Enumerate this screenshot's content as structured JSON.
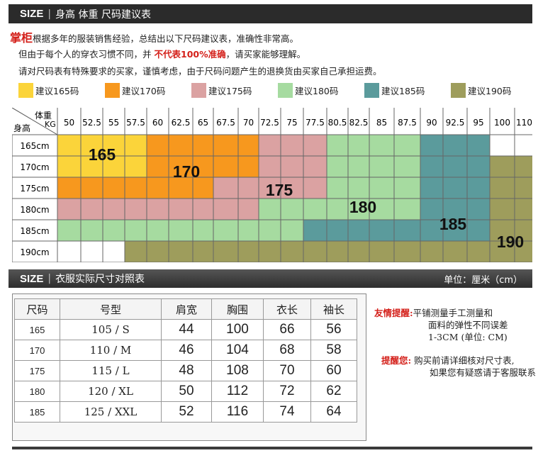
{
  "header1": {
    "size_word": "SIZE",
    "title": "身高 体重 尺码建议表"
  },
  "intro": {
    "brand": "掌柜",
    "line1": "根据多年的服装销售经验，总结出以下尺码建议表，准确性非常高。",
    "line2_pre": "但由于每个人的穿衣习惯不同，并",
    "line2_red": "不代表100%准确",
    "line2_post": "，请买家能够理解。",
    "line3": "请对尺码表有特殊要求的买家，谨慎考虑，由于尺码问题产生的退换货由买家自己承担运费。"
  },
  "legend": [
    {
      "label": "建议165码",
      "color": "#fbd43a"
    },
    {
      "label": "建议170码",
      "color": "#f7981e"
    },
    {
      "label": "建议175码",
      "color": "#dba2a2"
    },
    {
      "label": "建议180码",
      "color": "#a6dba0"
    },
    {
      "label": "建议185码",
      "color": "#5b9b9c"
    },
    {
      "label": "建议190码",
      "color": "#9e9d5c"
    }
  ],
  "grid": {
    "corner_weight": "体重",
    "corner_kg": "KG",
    "corner_height": "身高",
    "weights": [
      "50",
      "52.5",
      "55",
      "57.5",
      "60",
      "62.5",
      "65",
      "67.5",
      "70",
      "72.5",
      "75",
      "77.5",
      "80.5",
      "82.5",
      "85",
      "87.5",
      "90",
      "92.5",
      "95",
      "100",
      "110"
    ],
    "heights": [
      "165cm",
      "170cm",
      "175cm",
      "180cm",
      "185cm",
      "190cm"
    ],
    "cells": [
      [
        0,
        0,
        0,
        0,
        1,
        1,
        1,
        1,
        1,
        2,
        2,
        2,
        3,
        3,
        3,
        3,
        4,
        4,
        4,
        -1,
        -1
      ],
      [
        0,
        0,
        0,
        0,
        1,
        1,
        1,
        1,
        1,
        2,
        2,
        2,
        3,
        3,
        3,
        3,
        4,
        4,
        4,
        5,
        5
      ],
      [
        1,
        1,
        1,
        1,
        1,
        1,
        1,
        2,
        2,
        2,
        2,
        2,
        3,
        3,
        3,
        3,
        4,
        4,
        4,
        5,
        5
      ],
      [
        2,
        2,
        2,
        2,
        2,
        2,
        2,
        2,
        2,
        3,
        3,
        3,
        3,
        3,
        3,
        3,
        4,
        4,
        4,
        5,
        5
      ],
      [
        3,
        3,
        3,
        3,
        3,
        3,
        3,
        3,
        3,
        3,
        3,
        4,
        4,
        4,
        4,
        4,
        4,
        4,
        4,
        5,
        5
      ],
      [
        -1,
        -1,
        -1,
        5,
        5,
        5,
        5,
        5,
        5,
        5,
        5,
        5,
        5,
        5,
        5,
        5,
        5,
        5,
        5,
        5,
        5
      ]
    ],
    "overlay_labels": [
      "165",
      "170",
      "175",
      "180",
      "185",
      "190"
    ]
  },
  "header2": {
    "size_word": "SIZE",
    "title": "衣服实际尺寸对照表",
    "unit": "单位：厘米（cm）"
  },
  "size_table": {
    "headers": [
      "尺码",
      "号型",
      "肩宽",
      "胸围",
      "衣长",
      "袖长"
    ],
    "rows": [
      [
        "165",
        "105 / S",
        "44",
        "100",
        "66",
        "56"
      ],
      [
        "170",
        "110 / M",
        "46",
        "104",
        "68",
        "58"
      ],
      [
        "175",
        "115 / L",
        "48",
        "108",
        "70",
        "60"
      ],
      [
        "180",
        "120 / XL",
        "50",
        "112",
        "72",
        "62"
      ],
      [
        "185",
        "125 / XXL",
        "52",
        "116",
        "74",
        "64"
      ]
    ]
  },
  "tips": {
    "tip1_label": "友情提醒:",
    "tip1_line1": "平铺测量手工测量和",
    "tip1_line2": "面料的弹性不同误差",
    "tip1_line3": "1-3CM (单位: CM)",
    "tip2_label": "提醒您:",
    "tip2_line1": "购买前请详细核对尺寸表,",
    "tip2_line2": "如果您有疑惑请于客服联系"
  }
}
